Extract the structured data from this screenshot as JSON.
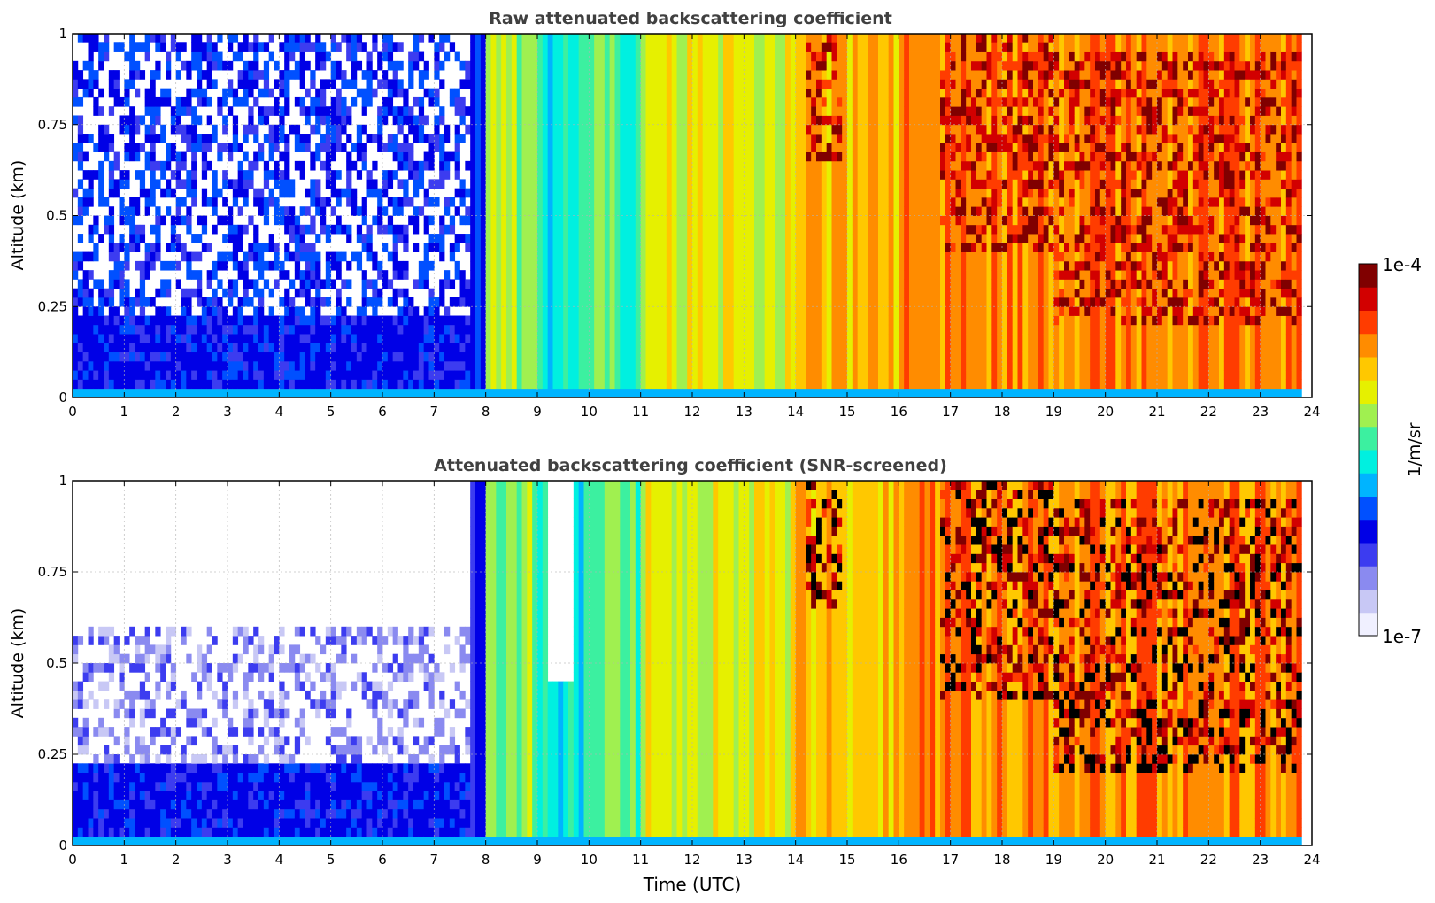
{
  "chart_data": {
    "type": "heatmap",
    "colorbar": {
      "min_label": "1e-7",
      "max_label": "1e-4",
      "label": "1/m/sr",
      "scale": "log",
      "range": [
        1e-07,
        0.0001
      ],
      "colormap": [
        "#f0f0ff",
        "#c8c8f5",
        "#8a8af0",
        "#3c3cf0",
        "#0000e6",
        "#0050ff",
        "#00b4ff",
        "#00f0e0",
        "#3cf0a0",
        "#a0f050",
        "#e6f000",
        "#ffc800",
        "#ff8c00",
        "#ff3c00",
        "#d20000",
        "#800000"
      ]
    },
    "shared": {
      "xlabel": "Time (UTC)",
      "x_ticks": [
        "0",
        "1",
        "2",
        "3",
        "4",
        "5",
        "6",
        "7",
        "8",
        "9",
        "10",
        "11",
        "12",
        "13",
        "14",
        "15",
        "16",
        "17",
        "18",
        "19",
        "20",
        "21",
        "22",
        "23",
        "24"
      ],
      "xlim": [
        0,
        24
      ],
      "ylim": [
        0,
        1
      ],
      "grid": "dotted"
    },
    "panels": [
      {
        "title": "Raw attenuated backscattering coefficient",
        "ylabel": "Altitude (km)",
        "y_ticks": [
          "0",
          "0.25",
          "0.5",
          "0.75",
          "1"
        ],
        "screened": false,
        "color_index_by_hour": [
          3,
          3,
          3,
          3,
          3,
          3,
          3,
          4,
          9,
          7,
          8,
          10,
          10,
          10,
          11,
          11,
          12,
          12,
          12,
          12,
          12,
          12,
          12,
          12
        ],
        "cloud_layers": [
          {
            "t_start": 14.2,
            "t_end": 14.9,
            "top_km": 1.0,
            "base_km": 0.65
          },
          {
            "t_start": 16.8,
            "t_end": 19.0,
            "top_km": 1.0,
            "base_km": 0.4
          },
          {
            "t_start": 19.0,
            "t_end": 23.8,
            "top_km": 0.95,
            "base_km": 0.2
          }
        ]
      },
      {
        "title": "Attenuated backscattering coefficient (SNR-screened)",
        "ylabel": "Altitude (km)",
        "y_ticks": [
          "0",
          "0.25",
          "0.5",
          "0.75",
          "1"
        ],
        "screened": true,
        "color_index_by_hour": [
          2,
          2,
          2,
          2,
          2,
          3,
          3,
          4,
          9,
          7,
          8,
          10,
          10,
          10,
          11,
          11,
          12,
          12,
          12,
          12,
          12,
          12,
          12,
          12
        ],
        "cloud_layers": [
          {
            "t_start": 14.2,
            "t_end": 14.9,
            "top_km": 1.0,
            "base_km": 0.65
          },
          {
            "t_start": 16.8,
            "t_end": 19.0,
            "top_km": 1.0,
            "base_km": 0.4
          },
          {
            "t_start": 19.0,
            "t_end": 23.8,
            "top_km": 0.95,
            "base_km": 0.2
          }
        ]
      }
    ]
  }
}
